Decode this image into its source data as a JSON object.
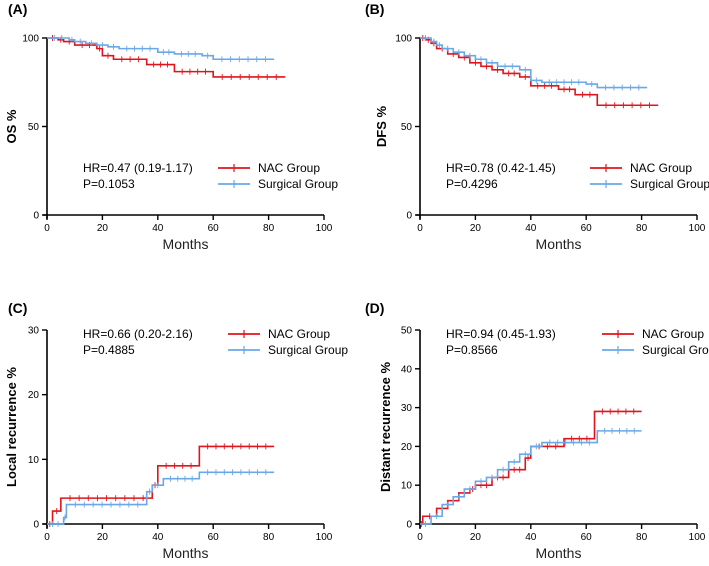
{
  "colors": {
    "nac": "#e0141c",
    "surgical": "#6aa8e8"
  },
  "chart_data": [
    {
      "type": "line",
      "panel": "(A)",
      "ylabel": "OS  %",
      "xlabel": "Months",
      "xlim": [
        0,
        100
      ],
      "ylim": [
        0,
        100
      ],
      "xticks": [
        "0",
        "20",
        "40",
        "60",
        "80",
        "100"
      ],
      "yticks": [
        "0",
        "50",
        "100"
      ],
      "stats": [
        "HR=0.47 (0.19-1.17)",
        "P=0.1053"
      ],
      "legend": [
        "NAC Group",
        "Surgical Group"
      ],
      "series": [
        {
          "name": "NAC Group",
          "x": [
            0,
            4,
            6,
            10,
            18,
            20,
            24,
            36,
            46,
            60,
            86
          ],
          "y": [
            100,
            99,
            98,
            96,
            94,
            90,
            88,
            85,
            81,
            78,
            78
          ]
        },
        {
          "name": "Surgical Group",
          "x": [
            0,
            8,
            10,
            14,
            18,
            22,
            26,
            40,
            46,
            56,
            60,
            82
          ],
          "y": [
            100,
            99,
            98,
            97,
            96,
            95,
            94,
            92,
            91,
            90,
            88,
            88
          ]
        }
      ]
    },
    {
      "type": "line",
      "panel": "(B)",
      "ylabel": "DFS  %",
      "xlabel": "Months",
      "xlim": [
        0,
        100
      ],
      "ylim": [
        0,
        100
      ],
      "xticks": [
        "0",
        "20",
        "40",
        "60",
        "80",
        "100"
      ],
      "yticks": [
        "0",
        "50",
        "100"
      ],
      "stats": [
        "HR=0.78 (0.42-1.45)",
        "P=0.4296"
      ],
      "legend": [
        "NAC Group",
        "Surgical Group"
      ],
      "series": [
        {
          "name": "NAC Group",
          "x": [
            0,
            2,
            4,
            6,
            10,
            14,
            18,
            22,
            26,
            30,
            36,
            40,
            50,
            56,
            64,
            86
          ],
          "y": [
            100,
            99,
            97,
            94,
            91,
            89,
            86,
            84,
            82,
            80,
            78,
            73,
            71,
            68,
            62,
            62
          ]
        },
        {
          "name": "Surgical Group",
          "x": [
            0,
            4,
            6,
            8,
            12,
            16,
            20,
            24,
            28,
            36,
            40,
            44,
            60,
            64,
            82
          ],
          "y": [
            100,
            98,
            96,
            94,
            92,
            90,
            88,
            86,
            84,
            82,
            76,
            75,
            74,
            72,
            72
          ]
        }
      ]
    },
    {
      "type": "line",
      "panel": "(C)",
      "ylabel": "Local recurrence  %",
      "xlabel": "Months",
      "xlim": [
        0,
        100
      ],
      "ylim": [
        0,
        30
      ],
      "xticks": [
        "0",
        "20",
        "40",
        "60",
        "80",
        "100"
      ],
      "yticks": [
        "0",
        "10",
        "20",
        "30"
      ],
      "stats": [
        "HR=0.66 (0.20-2.16)",
        "P=0.4885"
      ],
      "legend": [
        "NAC Group",
        "Surgical Group"
      ],
      "series": [
        {
          "name": "NAC Group",
          "x": [
            0,
            2,
            5,
            38,
            40,
            55,
            82
          ],
          "y": [
            0,
            2,
            4,
            6,
            9,
            12,
            12
          ]
        },
        {
          "name": "Surgical Group",
          "x": [
            0,
            6,
            7,
            36,
            38,
            42,
            55,
            82
          ],
          "y": [
            0,
            1,
            3,
            5,
            6,
            7,
            8,
            8
          ]
        }
      ]
    },
    {
      "type": "line",
      "panel": "(D)",
      "ylabel": "Distant recurrence  %",
      "xlabel": "Months",
      "xlim": [
        0,
        100
      ],
      "ylim": [
        0,
        50
      ],
      "xticks": [
        "0",
        "20",
        "40",
        "60",
        "80",
        "100"
      ],
      "yticks": [
        "0",
        "10",
        "20",
        "30",
        "40",
        "50"
      ],
      "stats": [
        "HR=0.94 (0.45-1.93)",
        "P=0.8566"
      ],
      "legend": [
        "NAC Group",
        "Surgical Group"
      ],
      "series": [
        {
          "name": "NAC Group",
          "x": [
            0,
            1,
            6,
            10,
            14,
            18,
            20,
            26,
            32,
            38,
            40,
            52,
            63,
            80
          ],
          "y": [
            0,
            2,
            4,
            6,
            8,
            9,
            10,
            12,
            14,
            17,
            20,
            22,
            29,
            29
          ]
        },
        {
          "name": "Surgical Group",
          "x": [
            0,
            4,
            8,
            12,
            16,
            20,
            24,
            28,
            32,
            36,
            40,
            44,
            64,
            80
          ],
          "y": [
            0,
            2,
            5,
            7,
            9,
            11,
            12,
            14,
            16,
            18,
            20,
            21,
            24,
            24
          ]
        }
      ]
    }
  ]
}
